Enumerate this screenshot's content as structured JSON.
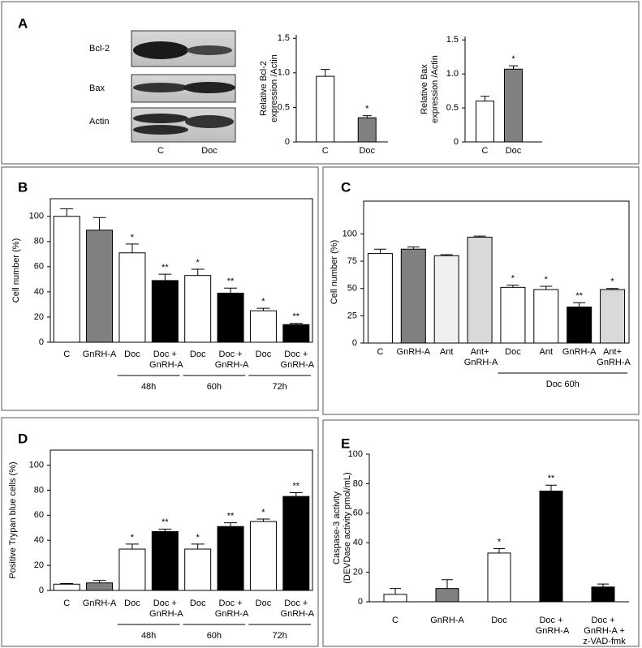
{
  "blot": {
    "panel": "A",
    "rows": [
      "Bcl-2",
      "Bax",
      "Actin"
    ],
    "lanes": [
      "C",
      "Doc"
    ]
  },
  "chart_data": [
    {
      "type": "bar",
      "ylabel": [
        "Relative Bcl-2",
        "expression /Actin"
      ],
      "categories": [
        "C",
        "Doc"
      ],
      "values": [
        0.95,
        0.35
      ],
      "errors": [
        0.1,
        0.03
      ],
      "significance": [
        null,
        "*"
      ],
      "colors": [
        "#ffffff",
        "#808080"
      ],
      "ylim": [
        0,
        1.55
      ],
      "yticks": [
        0,
        0.5,
        {
          "value": 1,
          "label": "1.0"
        },
        1.5
      ]
    },
    {
      "type": "bar",
      "ylabel": [
        "Relative Bax",
        "expression /Actin"
      ],
      "categories": [
        "C",
        "Doc"
      ],
      "values": [
        0.6,
        1.07
      ],
      "errors": [
        0.07,
        0.05
      ],
      "significance": [
        null,
        "*"
      ],
      "colors": [
        "#ffffff",
        "#808080"
      ],
      "ylim": [
        0,
        1.55
      ],
      "yticks": [
        0,
        0.5,
        {
          "value": 1,
          "label": "1.0"
        },
        1.5
      ]
    },
    {
      "type": "bar",
      "panel": "B",
      "ylabel": [
        "Cell number  (%)"
      ],
      "categories": [
        "C",
        "GnRH-A",
        "Doc",
        "Doc + GnRH-A",
        "Doc",
        "Doc + GnRH-A",
        "Doc",
        "Doc + GnRH-A"
      ],
      "values": [
        100,
        89,
        71,
        49,
        53,
        39,
        25,
        14
      ],
      "errors": [
        6,
        10,
        7,
        5,
        5,
        4,
        2,
        1
      ],
      "significance": [
        null,
        null,
        "*",
        "**",
        "*",
        "**",
        "*",
        "**"
      ],
      "colors": [
        "#ffffff",
        "#808080",
        "#ffffff",
        "#000000",
        "#ffffff",
        "#000000",
        "#ffffff",
        "#000000"
      ],
      "groups": [
        {
          "label": "48h",
          "categories": [
            2,
            3
          ]
        },
        {
          "label": "60h",
          "categories": [
            4,
            5
          ]
        },
        {
          "label": "72h",
          "categories": [
            6,
            7
          ]
        }
      ],
      "ylim": [
        0,
        114
      ],
      "yticks": [
        0,
        20,
        40,
        60,
        80,
        100
      ]
    },
    {
      "type": "bar",
      "panel": "C",
      "ylabel": [
        "Cell number  (%)"
      ],
      "categories": [
        "C",
        "GnRH-A",
        "Ant",
        "Ant+ GnRH-A",
        "Doc",
        "Ant",
        "GnRH-A",
        "Ant+ GnRH-A"
      ],
      "values": [
        82,
        86,
        80,
        97,
        51,
        49,
        33,
        49
      ],
      "errors": [
        4,
        2,
        1,
        1,
        2,
        3,
        4,
        1
      ],
      "significance": [
        null,
        null,
        null,
        null,
        "*",
        "*",
        "**",
        "*"
      ],
      "colors": [
        "#ffffff",
        "#808080",
        "#f0f0f0",
        "#d9d9d9",
        "#ffffff",
        "#ffffff",
        "#000000",
        "#d9d9d9"
      ],
      "groups": [
        {
          "label": "Doc 60h",
          "categories": [
            4,
            7
          ]
        }
      ],
      "ylim": [
        0,
        130
      ],
      "yticks": [
        0,
        25,
        50,
        75,
        100
      ]
    },
    {
      "type": "bar",
      "panel": "D",
      "ylabel": [
        "Positive Trypan blue cells (%)"
      ],
      "categories": [
        "C",
        "GnRH-A",
        "Doc",
        "Doc + GnRH-A",
        "Doc",
        "Doc + GnRH-A",
        "Doc",
        "Doc + GnRH-A"
      ],
      "values": [
        5,
        6,
        33,
        47,
        33,
        51,
        55,
        75
      ],
      "errors": [
        0.5,
        2,
        4,
        2,
        4,
        3,
        2,
        3
      ],
      "significance": [
        null,
        null,
        "*",
        "**",
        "*",
        "**",
        "*",
        "**"
      ],
      "colors": [
        "#ffffff",
        "#808080",
        "#ffffff",
        "#000000",
        "#ffffff",
        "#000000",
        "#ffffff",
        "#000000"
      ],
      "groups": [
        {
          "label": "48h",
          "categories": [
            2,
            3
          ]
        },
        {
          "label": "60h",
          "categories": [
            4,
            5
          ]
        },
        {
          "label": "72h",
          "categories": [
            6,
            7
          ]
        }
      ],
      "ylim": [
        0,
        112
      ],
      "yticks": [
        0,
        20,
        40,
        60,
        80,
        100
      ]
    },
    {
      "type": "bar",
      "panel": "E",
      "ylabel": [
        "Caspase-3 activity",
        "(DEVDase activity pmol/mL)"
      ],
      "categories": [
        "C",
        "GnRH-A",
        "Doc",
        "Doc + GnRH-A",
        "Doc + GnRH-A + z-VAD-fmk"
      ],
      "values": [
        5,
        9,
        33,
        75,
        10
      ],
      "errors": [
        4,
        6,
        3,
        4,
        2
      ],
      "significance": [
        null,
        null,
        "*",
        "**",
        null
      ],
      "colors": [
        "#ffffff",
        "#808080",
        "#ffffff",
        "#000000",
        "#000000"
      ],
      "ylim": [
        0,
        100
      ],
      "yticks": [
        0,
        20,
        40,
        60,
        80,
        100
      ]
    }
  ]
}
